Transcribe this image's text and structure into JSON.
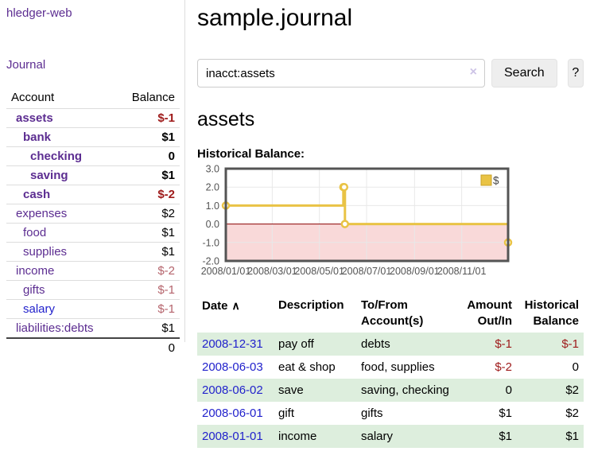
{
  "colors": {
    "link_purple": "#5c2d91",
    "link_blue": "#2222cc",
    "neg_strong": "#9e1a1a",
    "neg_muted": "#b5646c",
    "row_stripe_green": "#ddeedd",
    "chart_line": "#e9c345",
    "chart_negative_fill": "#f9d9d9",
    "chart_zero_line": "#8b0000",
    "chart_border": "#545454",
    "chart_grid": "#e8e8e8"
  },
  "sidebar": {
    "app_title": "hledger-web",
    "nav_journal": "Journal",
    "accounts_table": {
      "headers": {
        "account": "Account",
        "balance": "Balance"
      },
      "rows": [
        {
          "name": "assets",
          "indent": 0,
          "bold": true,
          "balance": "$-1",
          "balance_style": "neg-strong"
        },
        {
          "name": "bank",
          "indent": 1,
          "bold": true,
          "balance": "$1",
          "balance_style": "pos"
        },
        {
          "name": "checking",
          "indent": 2,
          "bold": true,
          "balance": "0",
          "balance_style": "pos"
        },
        {
          "name": "saving",
          "indent": 2,
          "bold": true,
          "balance": "$1",
          "balance_style": "pos"
        },
        {
          "name": "cash",
          "indent": 1,
          "bold": true,
          "balance": "$-2",
          "balance_style": "neg-strong"
        },
        {
          "name": "expenses",
          "indent": 0,
          "bold": false,
          "balance": "$2",
          "balance_style": "pos"
        },
        {
          "name": "food",
          "indent": 1,
          "bold": false,
          "balance": "$1",
          "balance_style": "pos"
        },
        {
          "name": "supplies",
          "indent": 1,
          "bold": false,
          "balance": "$1",
          "balance_style": "pos"
        },
        {
          "name": "income",
          "indent": 0,
          "bold": false,
          "balance": "$-2",
          "balance_style": "neg-muted"
        },
        {
          "name": "gifts",
          "indent": 1,
          "bold": false,
          "balance": "$-1",
          "balance_style": "neg-muted"
        },
        {
          "name": "salary",
          "indent": 1,
          "bold": false,
          "balance": "$-1",
          "balance_style": "neg-muted",
          "link_style": "blue"
        },
        {
          "name": "liabilities:debts",
          "indent": 0,
          "bold": false,
          "balance": "$1",
          "balance_style": "pos"
        }
      ],
      "total": "0"
    }
  },
  "header": {
    "title": "sample.journal"
  },
  "search": {
    "query": "inacct:assets",
    "clear_icon": "×",
    "button_label": "Search",
    "help_label": "?"
  },
  "account_page": {
    "heading": "assets",
    "chart_label": "Historical Balance:"
  },
  "chart_data": {
    "type": "line",
    "step": true,
    "title": "Historical Balance",
    "x_range": [
      "2008-01-01",
      "2008-12-31"
    ],
    "ylim": [
      -2,
      3
    ],
    "yticks": [
      3.0,
      2.0,
      1.0,
      0.0,
      -1.0,
      -2.0
    ],
    "xticks": [
      {
        "date": "2008-01-01",
        "label": "2008/01/01"
      },
      {
        "date": "2008-03-01",
        "label": "2008/03/01"
      },
      {
        "date": "2008-05-01",
        "label": "2008/05/01"
      },
      {
        "date": "2008-07-01",
        "label": "2008/07/01"
      },
      {
        "date": "2008-09-01",
        "label": "2008/09/01"
      },
      {
        "date": "2008-11-01",
        "label": "2008/11/01"
      }
    ],
    "series": [
      {
        "name": "$",
        "points": [
          [
            "2008-01-01",
            1
          ],
          [
            "2008-06-01",
            2
          ],
          [
            "2008-06-02",
            2
          ],
          [
            "2008-06-03",
            0
          ],
          [
            "2008-12-31",
            -1
          ]
        ]
      }
    ],
    "legend_position": "top-right",
    "grid": true,
    "negative_region_shaded": true
  },
  "transactions": {
    "sort_icon": "∧",
    "columns": [
      {
        "lines": [
          "Date"
        ],
        "align": "left",
        "sorted": true
      },
      {
        "lines": [
          "Description"
        ],
        "align": "left"
      },
      {
        "lines": [
          "To/From",
          "Account(s)"
        ],
        "align": "left"
      },
      {
        "lines": [
          "Amount",
          "Out/In"
        ],
        "align": "right"
      },
      {
        "lines": [
          "Historical",
          "Balance"
        ],
        "align": "right"
      }
    ],
    "rows": [
      {
        "date": "2008-12-31",
        "description": "pay off",
        "accounts": "debts",
        "amount": "$-1",
        "amount_neg": true,
        "balance": "$-1",
        "balance_neg": true
      },
      {
        "date": "2008-06-03",
        "description": "eat & shop",
        "accounts": "food, supplies",
        "amount": "$-2",
        "amount_neg": true,
        "balance": "0",
        "balance_neg": false
      },
      {
        "date": "2008-06-02",
        "description": "save",
        "accounts": "saving, checking",
        "amount": "0",
        "amount_neg": false,
        "balance": "$2",
        "balance_neg": false
      },
      {
        "date": "2008-06-01",
        "description": "gift",
        "accounts": "gifts",
        "amount": "$1",
        "amount_neg": false,
        "balance": "$2",
        "balance_neg": false
      },
      {
        "date": "2008-01-01",
        "description": "income",
        "accounts": "salary",
        "amount": "$1",
        "amount_neg": false,
        "balance": "$1",
        "balance_neg": false
      }
    ]
  }
}
